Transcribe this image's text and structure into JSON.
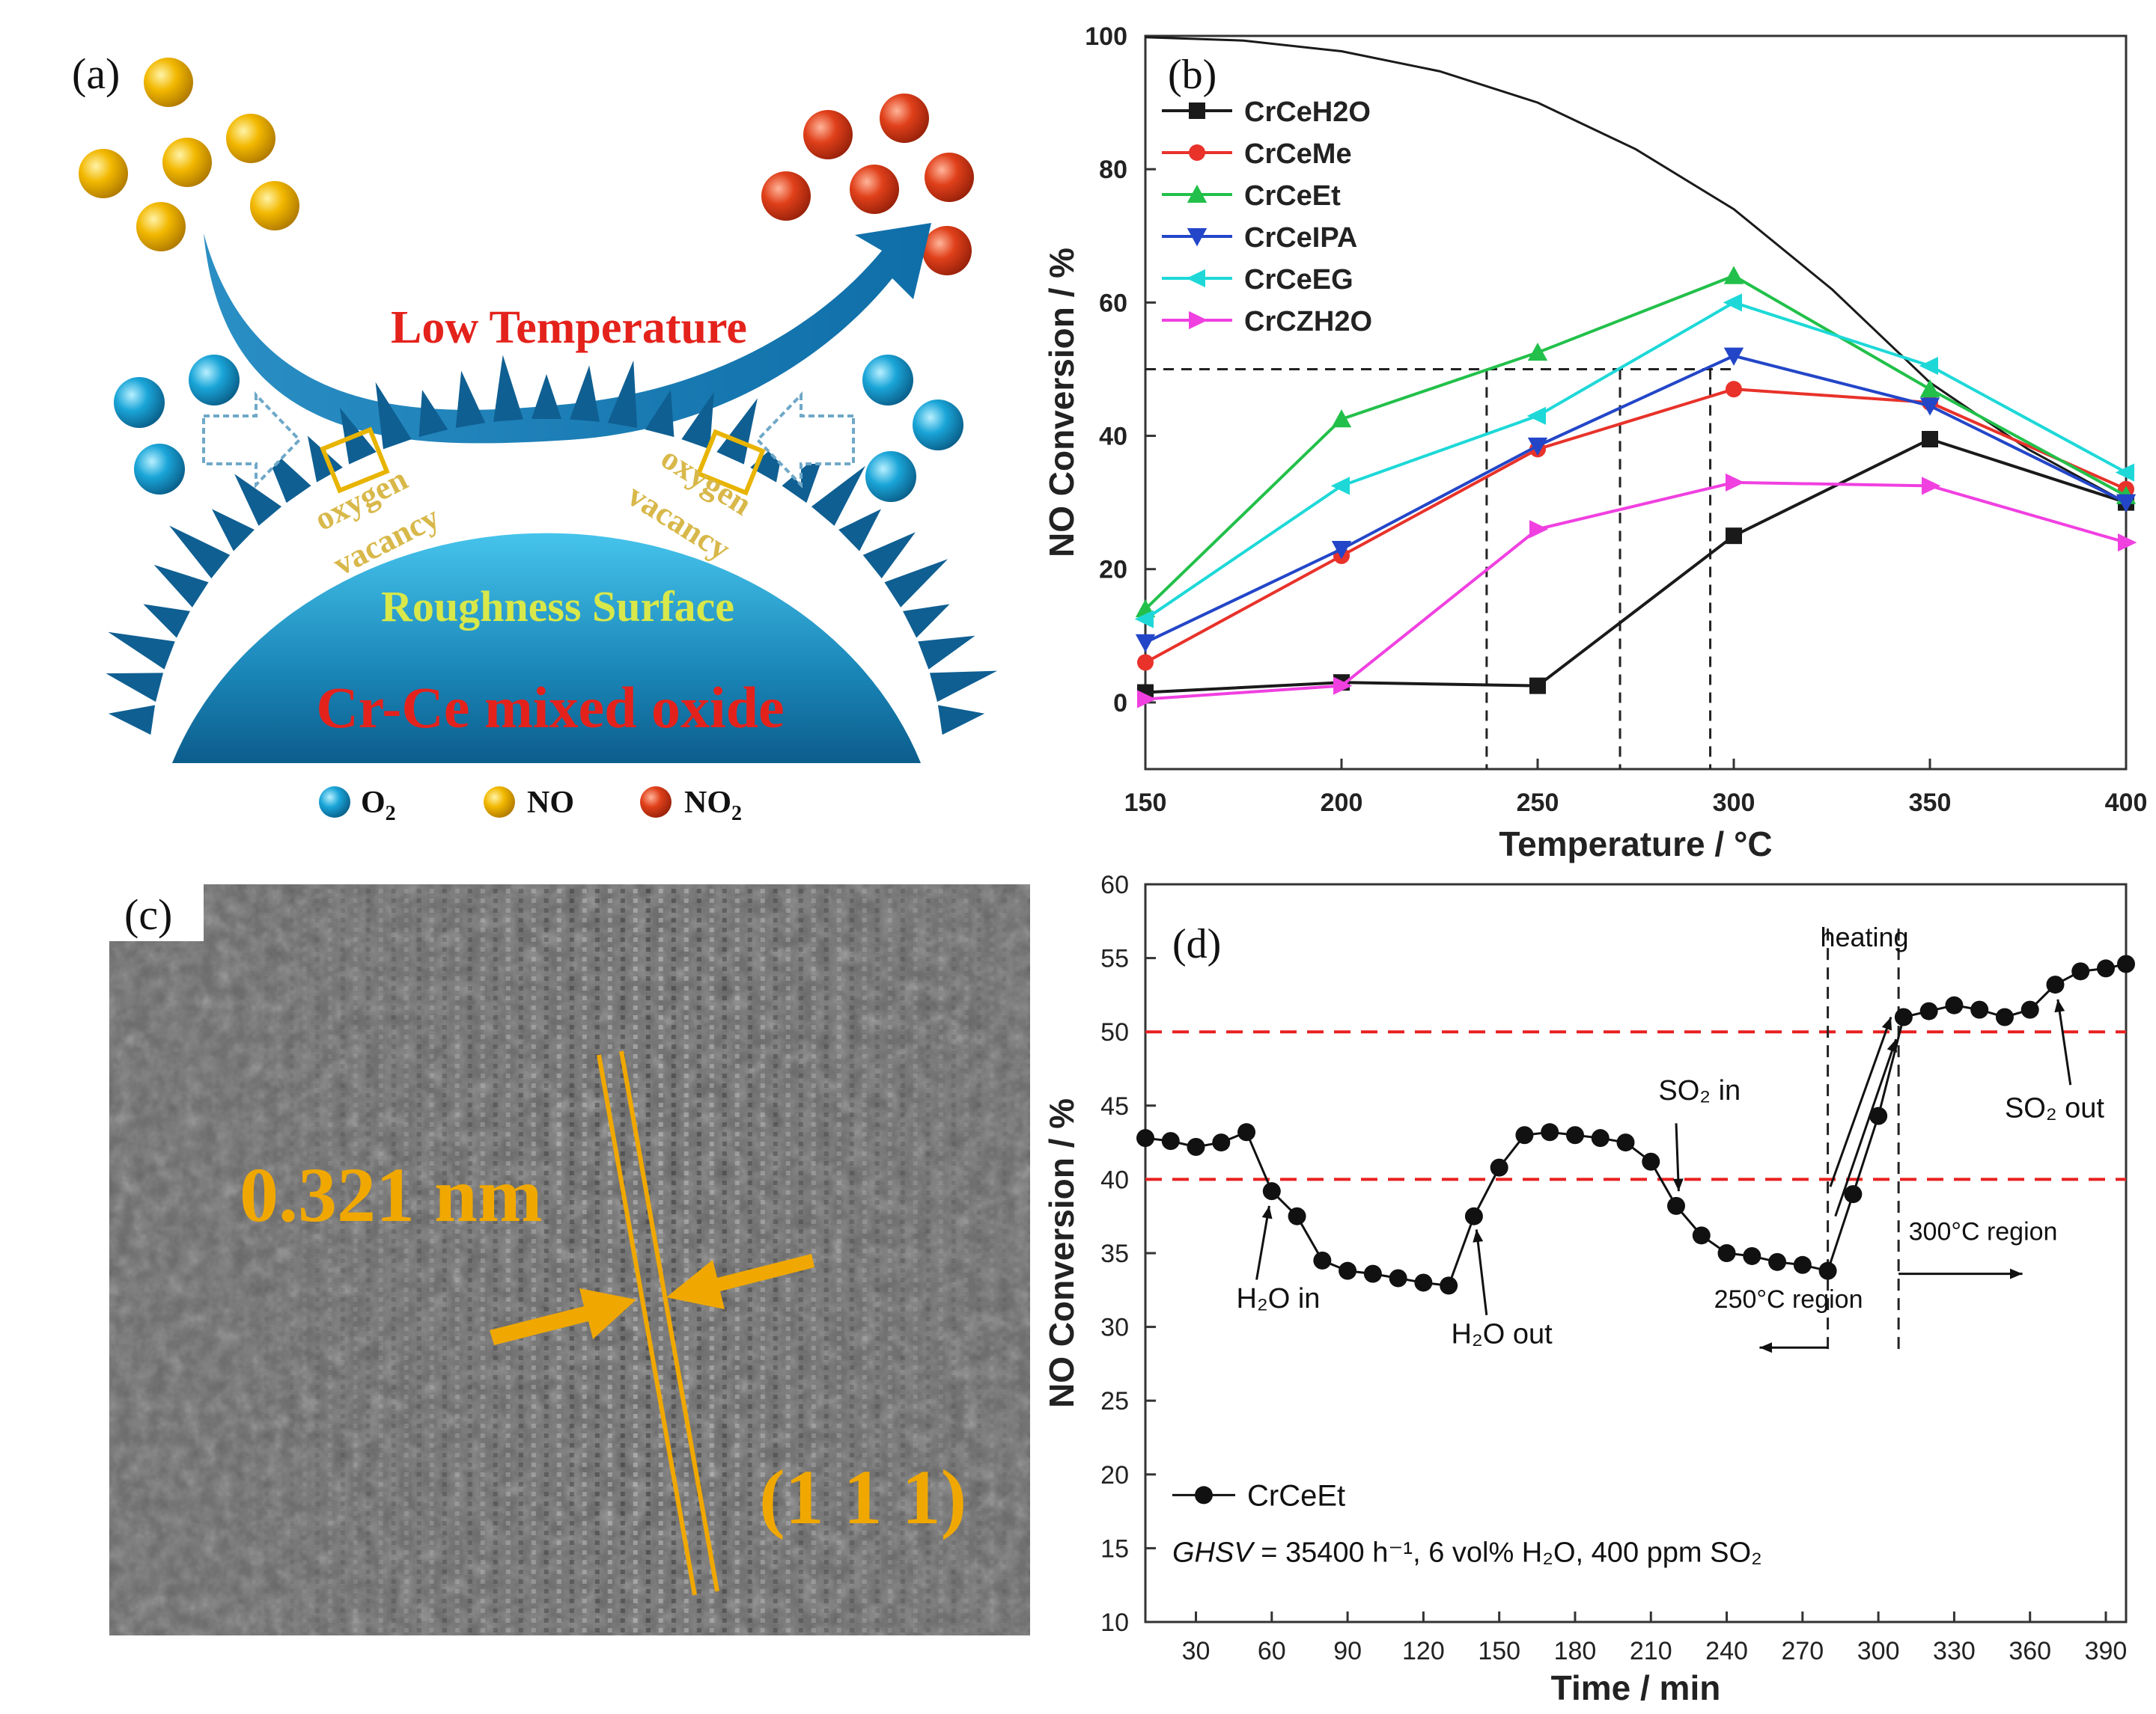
{
  "figure": {
    "panel_labels": [
      "(a)",
      "(b)",
      "(c)",
      "(d)"
    ]
  },
  "panel_a": {
    "arrow_label": "Low Temperature",
    "vacancy_label_1": "oxygen",
    "vacancy_label_2": "vacancy",
    "surface_label": "Roughness Surface",
    "oxide_label": "Cr-Ce mixed oxide",
    "legend": [
      {
        "label": "O",
        "sub": "2",
        "color": "#1aa5d8"
      },
      {
        "label": "NO",
        "sub": "",
        "color": "#f2b800"
      },
      {
        "label": "NO",
        "sub": "2",
        "color": "#e0401a"
      }
    ]
  },
  "panel_c": {
    "spacing_label": "0.321 nm",
    "plane_label": "(1 1 1)"
  },
  "chart_data": [
    {
      "type": "line",
      "panel": "(b)",
      "xlabel": "Temperature / °C",
      "ylabel": "NO Conversion / %",
      "xlim": [
        150,
        400
      ],
      "ylim": [
        -10,
        100
      ],
      "xticks": [
        150,
        200,
        250,
        300,
        350,
        400
      ],
      "yticks": [
        0,
        20,
        40,
        60,
        80,
        100
      ],
      "x": [
        150,
        200,
        250,
        300,
        350,
        400
      ],
      "series": [
        {
          "name": "CrCeH2O",
          "color": "#1a1a1a",
          "marker": "square",
          "values": [
            1.5,
            3,
            2.5,
            25,
            39.5,
            30
          ]
        },
        {
          "name": "CrCeMe",
          "color": "#e8322a",
          "marker": "circle",
          "values": [
            6,
            22,
            38,
            47,
            45,
            32
          ]
        },
        {
          "name": "CrCeEt",
          "color": "#22c04a",
          "marker": "triangle-up",
          "values": [
            14,
            42.5,
            52.5,
            64,
            47,
            31
          ]
        },
        {
          "name": "CrCeIPA",
          "color": "#2346c8",
          "marker": "triangle-down",
          "values": [
            9,
            23,
            38.5,
            52,
            44.5,
            30
          ]
        },
        {
          "name": "CrCeEG",
          "color": "#1ed8d8",
          "marker": "diamond-left",
          "values": [
            12.5,
            32.5,
            43,
            60,
            50.5,
            34.5
          ]
        },
        {
          "name": "CrCZH2O",
          "color": "#f040e0",
          "marker": "triangle-right",
          "values": [
            0.5,
            2.5,
            26,
            33,
            32.5,
            24
          ]
        }
      ],
      "equilibrium_curve": {
        "color": "#1a1a1a",
        "x": [
          150,
          175,
          200,
          225,
          250,
          275,
          300,
          325,
          350,
          375,
          400
        ],
        "values": [
          99.8,
          99.3,
          97.7,
          94.7,
          90,
          83,
          74,
          62,
          48,
          38,
          30
        ]
      },
      "reference_line": {
        "y": 50,
        "x_from": 150,
        "x_to": 300,
        "style": "dashed"
      },
      "reference_drops": [
        237,
        271,
        294
      ],
      "legend_position": "top-left"
    },
    {
      "type": "scatter-line",
      "panel": "(d)",
      "xlabel": "Time / min",
      "ylabel": "NO Conversion / %",
      "xlim": [
        10,
        398
      ],
      "ylim": [
        10,
        60
      ],
      "xticks": [
        30,
        60,
        90,
        120,
        150,
        180,
        210,
        240,
        270,
        300,
        330,
        360,
        390
      ],
      "yticks": [
        10,
        15,
        20,
        25,
        30,
        35,
        40,
        45,
        50,
        55,
        60
      ],
      "series": [
        {
          "name": "CrCeEt",
          "color": "#000000",
          "marker": "circle",
          "x": [
            10,
            20,
            30,
            40,
            50,
            60,
            70,
            80,
            90,
            100,
            110,
            120,
            130,
            140,
            150,
            160,
            170,
            180,
            190,
            200,
            210,
            220,
            230,
            240,
            250,
            260,
            270,
            280,
            290,
            300,
            310,
            320,
            330,
            340,
            350,
            360,
            370,
            380,
            390,
            398
          ],
          "values": [
            42.8,
            42.6,
            42.2,
            42.5,
            43.2,
            39.2,
            37.5,
            34.5,
            33.8,
            33.6,
            33.3,
            33,
            32.8,
            37.5,
            40.8,
            43,
            43.2,
            43,
            42.8,
            42.5,
            41.2,
            38.2,
            36.2,
            35,
            34.8,
            34.4,
            34.2,
            33.8,
            39,
            44.3,
            51,
            51.4,
            51.8,
            51.5,
            51,
            51.5,
            53.2,
            54.1,
            54.3,
            54.6
          ]
        }
      ],
      "reference_lines": [
        {
          "y": 50,
          "color": "#e82020",
          "style": "dashed"
        },
        {
          "y": 40,
          "color": "#e82020",
          "style": "dashed"
        }
      ],
      "vertical_lines": [
        {
          "x": 280
        },
        {
          "x": 308
        }
      ],
      "annotations": [
        {
          "text": "H₂O in",
          "x": 60,
          "y": 39.2
        },
        {
          "text": "H₂O out",
          "x": 140,
          "y": 37.5
        },
        {
          "text": "SO₂ in",
          "x": 220,
          "y": 38.2
        },
        {
          "text": "SO₂ out",
          "x": 370,
          "y": 53.2
        },
        {
          "text": "heating",
          "x": 294,
          "y": 56
        },
        {
          "text": "250°C region",
          "x": 250,
          "y": 29
        },
        {
          "text": "300°C region",
          "x": 355,
          "y": 36
        }
      ],
      "legend_label": "CrCeEt",
      "condition_text": {
        "prefix": "GHSV",
        "rest": " = 35400 h⁻¹, 6 vol% H₂O, 400 ppm SO₂"
      },
      "legend_position": "bottom-left"
    }
  ]
}
